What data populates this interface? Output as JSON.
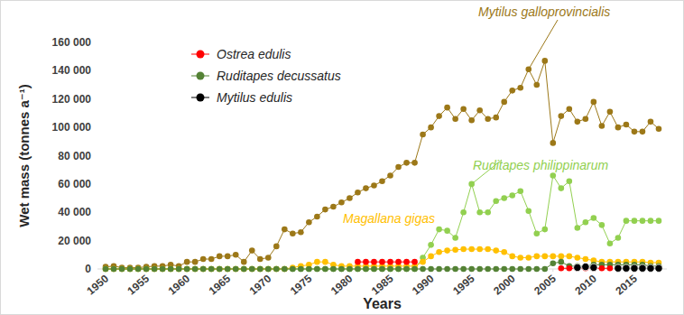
{
  "chart_data": {
    "type": "line",
    "x_label": "Years",
    "y_label": "Wet mass (tonnes a⁻¹)",
    "x": [
      1950,
      1951,
      1952,
      1953,
      1954,
      1955,
      1956,
      1957,
      1958,
      1959,
      1960,
      1961,
      1962,
      1963,
      1964,
      1965,
      1966,
      1967,
      1968,
      1969,
      1970,
      1971,
      1972,
      1973,
      1974,
      1975,
      1976,
      1977,
      1978,
      1979,
      1980,
      1981,
      1982,
      1983,
      1984,
      1985,
      1986,
      1987,
      1988,
      1989,
      1990,
      1991,
      1992,
      1993,
      1994,
      1995,
      1996,
      1997,
      1998,
      1999,
      2000,
      2001,
      2002,
      2003,
      2004,
      2005,
      2006,
      2007,
      2008,
      2009,
      2010,
      2011,
      2012,
      2013,
      2014,
      2015,
      2016,
      2017,
      2018
    ],
    "xlim": [
      1949,
      2019
    ],
    "xticks": [
      1950,
      1955,
      1960,
      1965,
      1970,
      1975,
      1980,
      1985,
      1990,
      1995,
      2000,
      2005,
      2010,
      2015
    ],
    "ylim": [
      0,
      160000
    ],
    "yticks": [
      0,
      {
        "value": 20000,
        "label": "20 000"
      },
      {
        "value": 40000,
        "label": "40 000"
      },
      {
        "value": 60000,
        "label": "60 000"
      },
      {
        "value": 80000,
        "label": "80 000"
      },
      {
        "value": 100000,
        "label": "100 000"
      },
      {
        "value": 120000,
        "label": "120 000"
      },
      {
        "value": 140000,
        "label": "140 000"
      },
      {
        "value": 160000,
        "label": "160 000"
      }
    ],
    "grid": false,
    "legend": "upper left",
    "marker": "circle",
    "series": [
      {
        "name": "Ostrea edulis",
        "color": "#ff0000",
        "values": [
          null,
          null,
          null,
          null,
          null,
          null,
          null,
          null,
          null,
          null,
          null,
          null,
          null,
          null,
          null,
          null,
          null,
          null,
          null,
          null,
          null,
          null,
          null,
          null,
          null,
          null,
          null,
          null,
          null,
          null,
          null,
          5000,
          5000,
          5000,
          5000,
          5000,
          5000,
          5000,
          5000,
          null,
          null,
          null,
          null,
          null,
          null,
          null,
          null,
          null,
          null,
          null,
          null,
          null,
          null,
          null,
          null,
          null,
          500,
          500,
          500,
          500,
          500,
          500,
          500,
          null,
          null,
          null,
          null,
          null,
          null
        ]
      },
      {
        "name": "Ruditapes decussatus",
        "color": "#548235",
        "values": [
          0,
          0,
          0,
          0,
          0,
          0,
          0,
          0,
          0,
          0,
          0,
          0,
          0,
          0,
          0,
          0,
          0,
          0,
          0,
          0,
          0,
          0,
          0,
          0,
          0,
          0,
          0,
          0,
          0,
          0,
          0,
          0,
          0,
          0,
          0,
          0,
          0,
          0,
          0,
          0,
          0,
          0,
          0,
          0,
          0,
          0,
          0,
          0,
          0,
          0,
          0,
          0,
          0,
          0,
          0,
          4000,
          5000,
          2000,
          2000,
          2000,
          3000,
          3000,
          3000,
          3000,
          3000,
          3000,
          3000,
          2000,
          2000
        ]
      },
      {
        "name": "Mytilus edulis",
        "color": "#000000",
        "values": [
          null,
          null,
          null,
          null,
          null,
          null,
          null,
          null,
          null,
          null,
          null,
          null,
          null,
          null,
          null,
          null,
          null,
          null,
          null,
          null,
          null,
          null,
          null,
          null,
          null,
          null,
          null,
          null,
          null,
          null,
          null,
          null,
          null,
          null,
          null,
          null,
          null,
          null,
          null,
          null,
          null,
          null,
          null,
          null,
          null,
          null,
          null,
          null,
          null,
          null,
          null,
          null,
          null,
          null,
          null,
          null,
          null,
          null,
          1000,
          1500,
          1000,
          null,
          null,
          500,
          500,
          500,
          500,
          500,
          500
        ]
      },
      {
        "name": "Mytilus galloprovincialis",
        "color": "#9c7818",
        "values": [
          1500,
          2000,
          1000,
          1000,
          1000,
          1500,
          2000,
          2000,
          3000,
          2000,
          5000,
          5000,
          7000,
          7000,
          9000,
          9000,
          10000,
          5000,
          13000,
          7000,
          8000,
          16000,
          28000,
          25000,
          26000,
          33000,
          37000,
          42000,
          44000,
          47000,
          50000,
          54000,
          57000,
          59000,
          62000,
          66000,
          72000,
          75000,
          75000,
          95000,
          100000,
          108000,
          114000,
          106000,
          113000,
          105000,
          112000,
          106000,
          107000,
          118000,
          126000,
          128000,
          141000,
          130000,
          147000,
          89000,
          108000,
          113000,
          104000,
          106000,
          118000,
          101000,
          111000,
          100000,
          102000,
          97000,
          97000,
          104000,
          99000
        ]
      },
      {
        "name": "Ruditapes philippinarum",
        "color": "#92d050",
        "values": [
          0,
          0,
          0,
          0,
          0,
          0,
          0,
          0,
          0,
          0,
          0,
          0,
          0,
          0,
          0,
          0,
          0,
          0,
          0,
          0,
          0,
          0,
          0,
          0,
          0,
          0,
          0,
          0,
          0,
          0,
          0,
          0,
          0,
          0,
          0,
          0,
          0,
          0,
          0,
          8000,
          17000,
          28000,
          27000,
          22000,
          40000,
          60000,
          40000,
          40000,
          48000,
          50000,
          52000,
          55000,
          41000,
          25000,
          28000,
          66000,
          57000,
          62000,
          29000,
          33000,
          36000,
          31000,
          18000,
          22000,
          34000,
          34000,
          34000,
          34000,
          34000
        ]
      },
      {
        "name": "Magallana gigas",
        "color": "#ffc000",
        "values": [
          0,
          0,
          0,
          0,
          0,
          0,
          0,
          0,
          0,
          0,
          0,
          0,
          0,
          0,
          0,
          0,
          0,
          0,
          0,
          0,
          0,
          0,
          0,
          1000,
          2000,
          3000,
          5000,
          5000,
          3000,
          2000,
          2000,
          2000,
          2000,
          2000,
          2000,
          2000,
          2000,
          2000,
          2000,
          5000,
          9000,
          12000,
          13000,
          13500,
          14000,
          14000,
          14000,
          14000,
          13000,
          12000,
          9000,
          8000,
          8000,
          9000,
          9000,
          9000,
          9000,
          9000,
          8000,
          7000,
          6000,
          5000,
          5000,
          5000,
          5000,
          5000,
          5000,
          4500,
          4500
        ]
      }
    ]
  }
}
